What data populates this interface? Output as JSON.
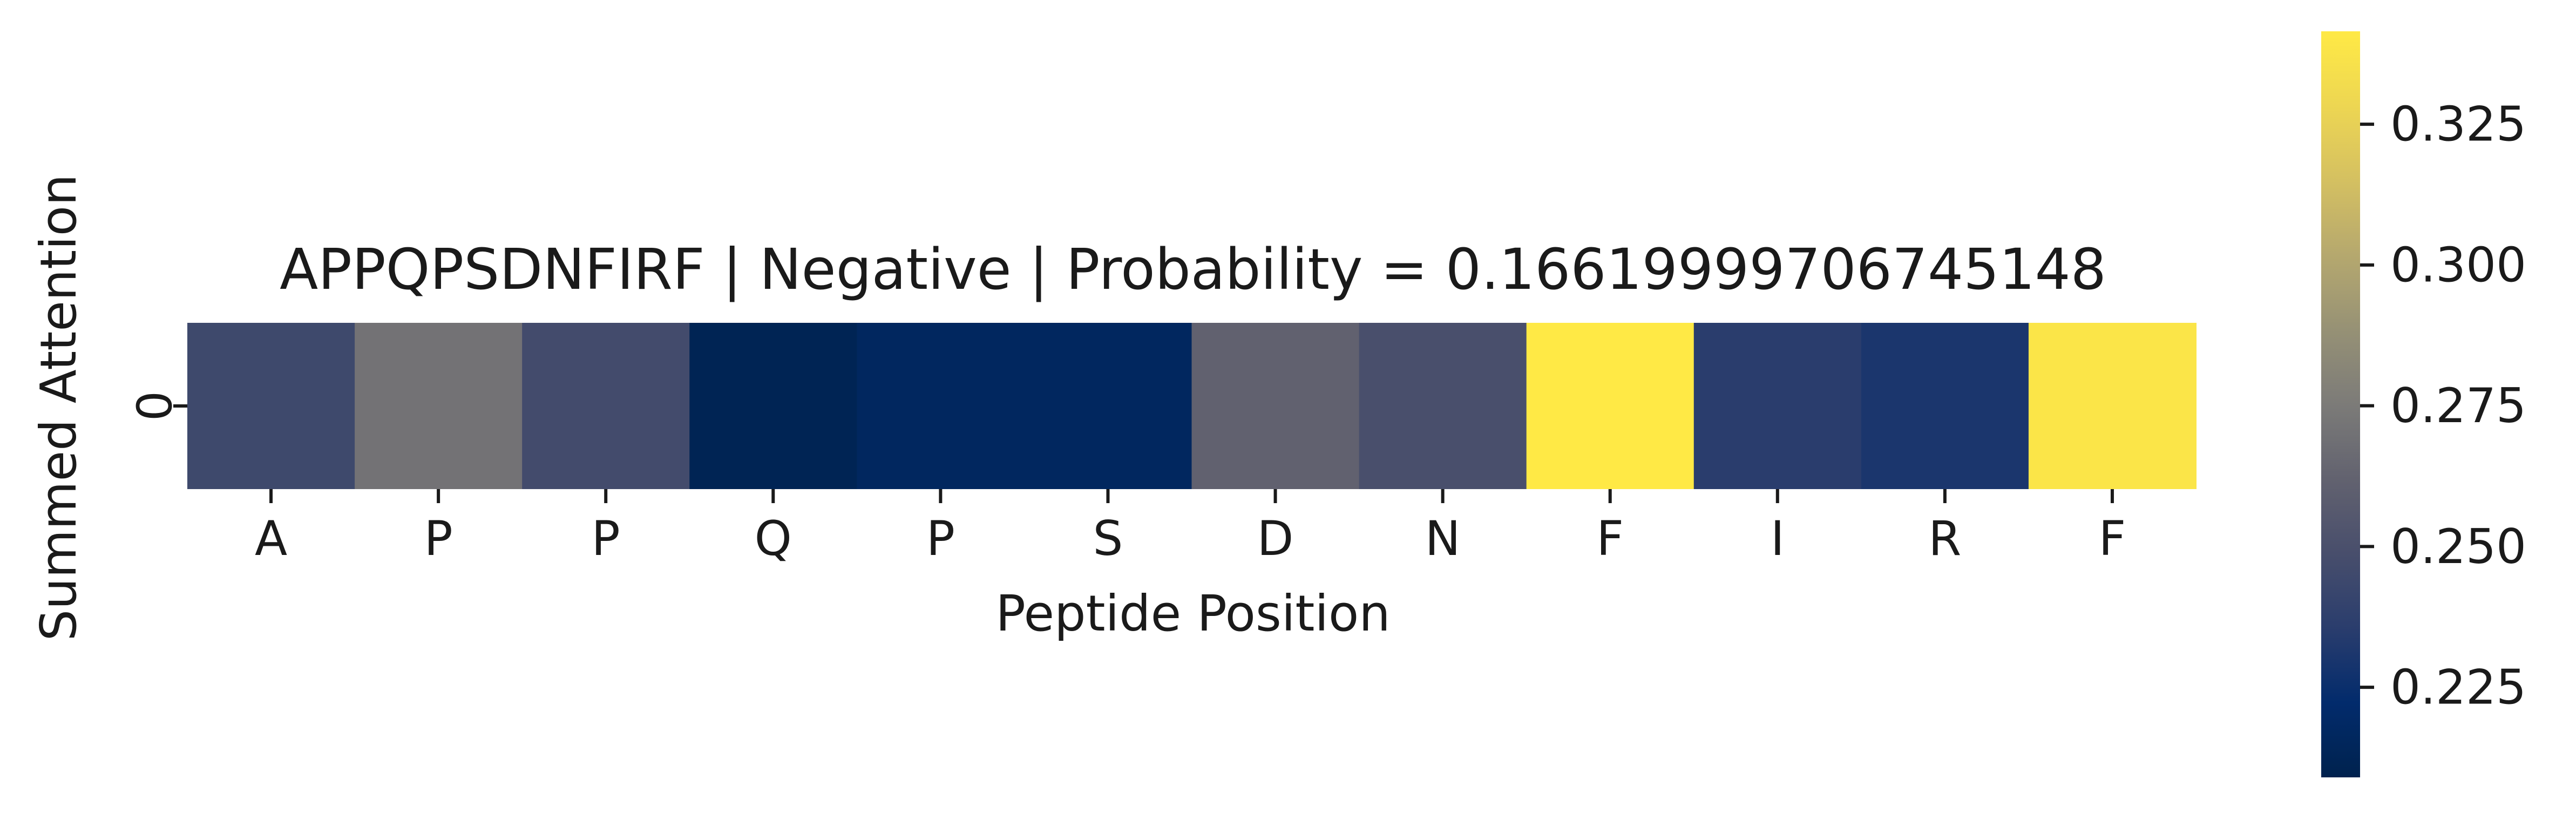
{
  "chart_data": {
    "type": "heatmap",
    "title": "APPQPSDNFIRF | Negative | Probability = 0.16619999706745148",
    "xlabel": "Peptide Position",
    "ylabel": "Summed Attention",
    "x_categories": [
      "A",
      "P",
      "P",
      "Q",
      "P",
      "S",
      "D",
      "N",
      "F",
      "I",
      "R",
      "F"
    ],
    "y_categories": [
      "0"
    ],
    "values": [
      [
        0.2445,
        0.2705,
        0.2465,
        0.2115,
        0.2165,
        0.2165,
        0.2615,
        0.2495,
        0.3415,
        0.2355,
        0.2305,
        0.3385
      ]
    ],
    "colormap": "cividis",
    "color_range": [
      0.209,
      0.3415
    ],
    "colorbar_ticks": [
      0.225,
      0.25,
      0.275,
      0.3,
      0.325
    ],
    "colorbar_tick_labels": [
      "0.225",
      "0.250",
      "0.275",
      "0.300",
      "0.325"
    ],
    "grid": false,
    "legend": "colorbar-right"
  }
}
